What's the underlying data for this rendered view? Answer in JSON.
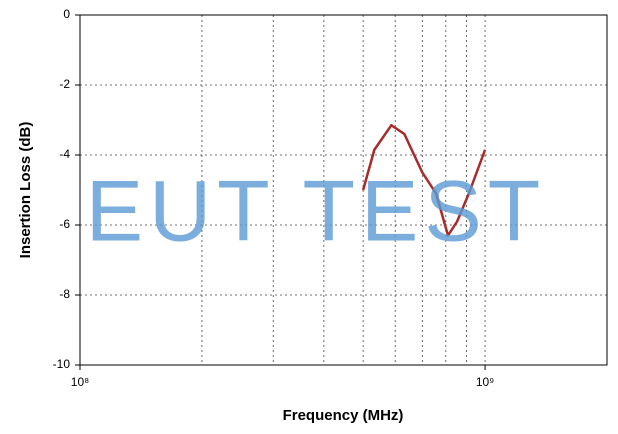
{
  "chart_data": {
    "type": "line",
    "watermark": "EUT TEST",
    "xlabel": "Frequency (MHz)",
    "ylabel": "Insertion Loss (dB)",
    "log_x": true,
    "grid": true,
    "xlim": [
      100000000,
      2000000000
    ],
    "ylim": [
      -10,
      0
    ],
    "xticks": [
      {
        "value": 100000000,
        "label": "10⁸"
      },
      {
        "value": 1000000000,
        "label": "10⁹"
      }
    ],
    "xgrid": [
      200000000,
      300000000,
      400000000,
      500000000,
      600000000,
      700000000,
      800000000,
      900000000,
      1000000000
    ],
    "yticks": [
      0,
      -2,
      -4,
      -6,
      -8,
      -10
    ],
    "x": [
      500000000,
      533000000,
      587000000,
      632000000,
      700000000,
      757000000,
      810000000,
      853000000,
      912000000,
      1000000000
    ],
    "series": [
      {
        "name": "Insertion Loss",
        "color": "#a82b2b",
        "values": [
          -5.0,
          -3.85,
          -3.15,
          -3.4,
          -4.5,
          -5.1,
          -6.3,
          -5.9,
          -5.1,
          -3.85
        ]
      }
    ]
  }
}
